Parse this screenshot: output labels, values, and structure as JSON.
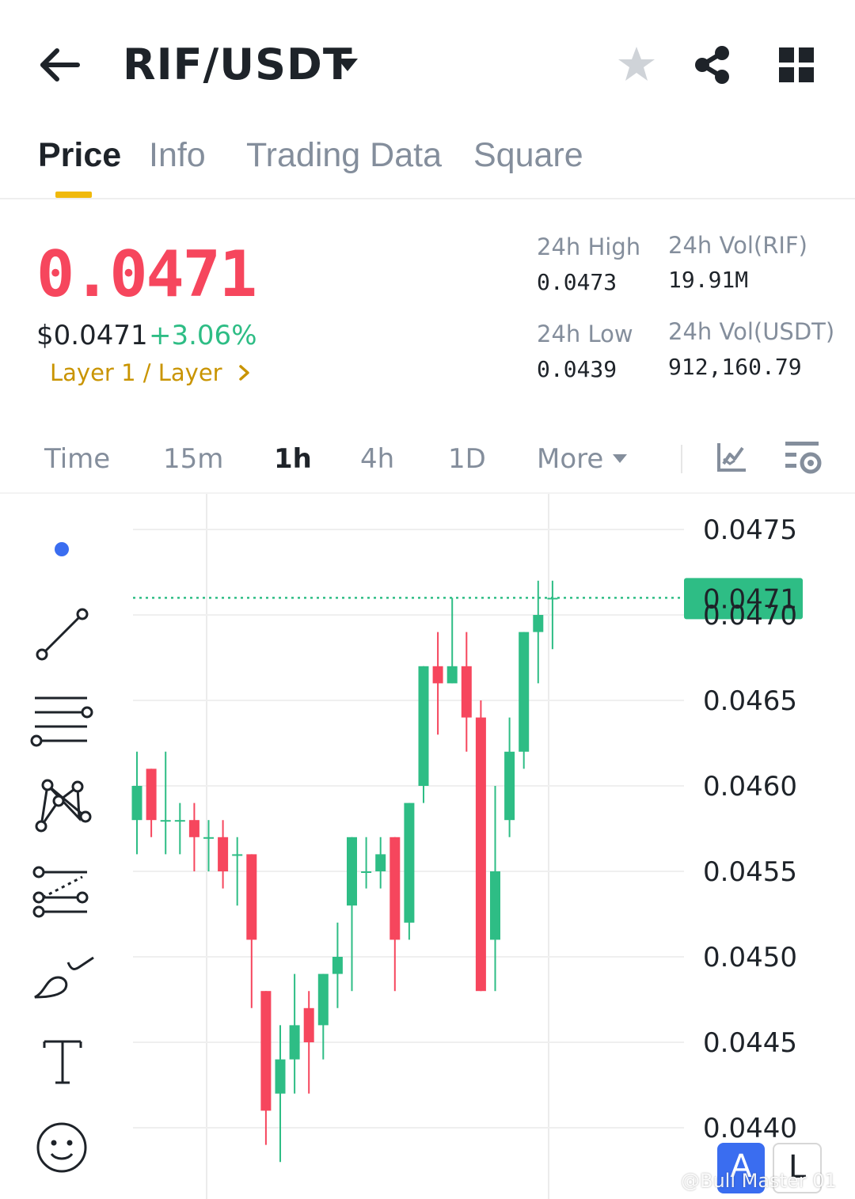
{
  "header": {
    "pair": "RIF/USDT"
  },
  "tabs": [
    {
      "label": "Price",
      "active": true
    },
    {
      "label": "Info",
      "active": false
    },
    {
      "label": "Trading Data",
      "active": false
    },
    {
      "label": "Square",
      "active": false
    }
  ],
  "ticker": {
    "last_price": "0.0471",
    "usd_price": "$0.0471",
    "change_pct": "+3.06%",
    "category": "Layer 1 / Layer",
    "high_label": "24h High",
    "high_value": "0.0473",
    "low_label": "24h Low",
    "low_value": "0.0439",
    "vol_base_label": "24h Vol(RIF)",
    "vol_base_value": "19.91M",
    "vol_quote_label": "24h Vol(USDT)",
    "vol_quote_value": "912,160.79"
  },
  "intervals": [
    {
      "label": "Time",
      "active": false
    },
    {
      "label": "15m",
      "active": false
    },
    {
      "label": "1h",
      "active": true
    },
    {
      "label": "4h",
      "active": false
    },
    {
      "label": "1D",
      "active": false
    },
    {
      "label": "More",
      "active": false
    }
  ],
  "chart_data": {
    "type": "candlestick",
    "interval": "1h",
    "y_ticks": [
      "0.0475",
      "0.0470",
      "0.0465",
      "0.0460",
      "0.0455",
      "0.0450",
      "0.0445",
      "0.0440"
    ],
    "ylim": [
      0.0436,
      0.0477
    ],
    "current_price": "0.0471",
    "candles": [
      {
        "o": 0.0458,
        "h": 0.0462,
        "l": 0.0456,
        "c": 0.046
      },
      {
        "o": 0.0461,
        "h": 0.0461,
        "l": 0.0457,
        "c": 0.0458
      },
      {
        "o": 0.0458,
        "h": 0.0462,
        "l": 0.0456,
        "c": 0.0458
      },
      {
        "o": 0.0458,
        "h": 0.0459,
        "l": 0.0456,
        "c": 0.0458
      },
      {
        "o": 0.0458,
        "h": 0.0459,
        "l": 0.0455,
        "c": 0.0457
      },
      {
        "o": 0.0457,
        "h": 0.0458,
        "l": 0.0455,
        "c": 0.0457
      },
      {
        "o": 0.0457,
        "h": 0.0458,
        "l": 0.0454,
        "c": 0.0455
      },
      {
        "o": 0.0456,
        "h": 0.0457,
        "l": 0.0453,
        "c": 0.0456
      },
      {
        "o": 0.0456,
        "h": 0.0456,
        "l": 0.0447,
        "c": 0.0451
      },
      {
        "o": 0.0448,
        "h": 0.0448,
        "l": 0.0439,
        "c": 0.0441
      },
      {
        "o": 0.0442,
        "h": 0.0446,
        "l": 0.0438,
        "c": 0.0444
      },
      {
        "o": 0.0444,
        "h": 0.0449,
        "l": 0.0442,
        "c": 0.0446
      },
      {
        "o": 0.0447,
        "h": 0.0448,
        "l": 0.0442,
        "c": 0.0445
      },
      {
        "o": 0.0446,
        "h": 0.0449,
        "l": 0.0444,
        "c": 0.0449
      },
      {
        "o": 0.0449,
        "h": 0.0452,
        "l": 0.0447,
        "c": 0.045
      },
      {
        "o": 0.0453,
        "h": 0.0457,
        "l": 0.0448,
        "c": 0.0457
      },
      {
        "o": 0.0455,
        "h": 0.0457,
        "l": 0.0454,
        "c": 0.0455
      },
      {
        "o": 0.0455,
        "h": 0.0457,
        "l": 0.0454,
        "c": 0.0456
      },
      {
        "o": 0.0457,
        "h": 0.0457,
        "l": 0.0448,
        "c": 0.0451
      },
      {
        "o": 0.0452,
        "h": 0.0459,
        "l": 0.0451,
        "c": 0.0459
      },
      {
        "o": 0.046,
        "h": 0.0467,
        "l": 0.0459,
        "c": 0.0467
      },
      {
        "o": 0.0467,
        "h": 0.0469,
        "l": 0.0463,
        "c": 0.0466
      },
      {
        "o": 0.0466,
        "h": 0.0471,
        "l": 0.0466,
        "c": 0.0467
      },
      {
        "o": 0.0467,
        "h": 0.0469,
        "l": 0.0462,
        "c": 0.0464
      },
      {
        "o": 0.0464,
        "h": 0.0465,
        "l": 0.0448,
        "c": 0.0448
      },
      {
        "o": 0.0451,
        "h": 0.046,
        "l": 0.0448,
        "c": 0.0455
      },
      {
        "o": 0.0458,
        "h": 0.0464,
        "l": 0.0457,
        "c": 0.0462
      },
      {
        "o": 0.0462,
        "h": 0.0469,
        "l": 0.0461,
        "c": 0.0469
      },
      {
        "o": 0.0469,
        "h": 0.0472,
        "l": 0.0466,
        "c": 0.047
      },
      {
        "o": 0.0471,
        "h": 0.0472,
        "l": 0.0468,
        "c": 0.0471
      }
    ]
  },
  "drawing_tools": [
    "dot",
    "trend-line-icon",
    "parallel-lines-icon",
    "pattern-icon",
    "fibonacci-icon",
    "brush-icon",
    "text-icon",
    "emoji-icon"
  ],
  "badges": {
    "a": "A",
    "l": "L"
  },
  "watermark": "@Bull Master 01",
  "colors": {
    "up": "#2ebd85",
    "down": "#f6465d",
    "accent": "#f0b90b",
    "category": "#c99400",
    "muted": "#848e9c",
    "text": "#1e2329"
  }
}
